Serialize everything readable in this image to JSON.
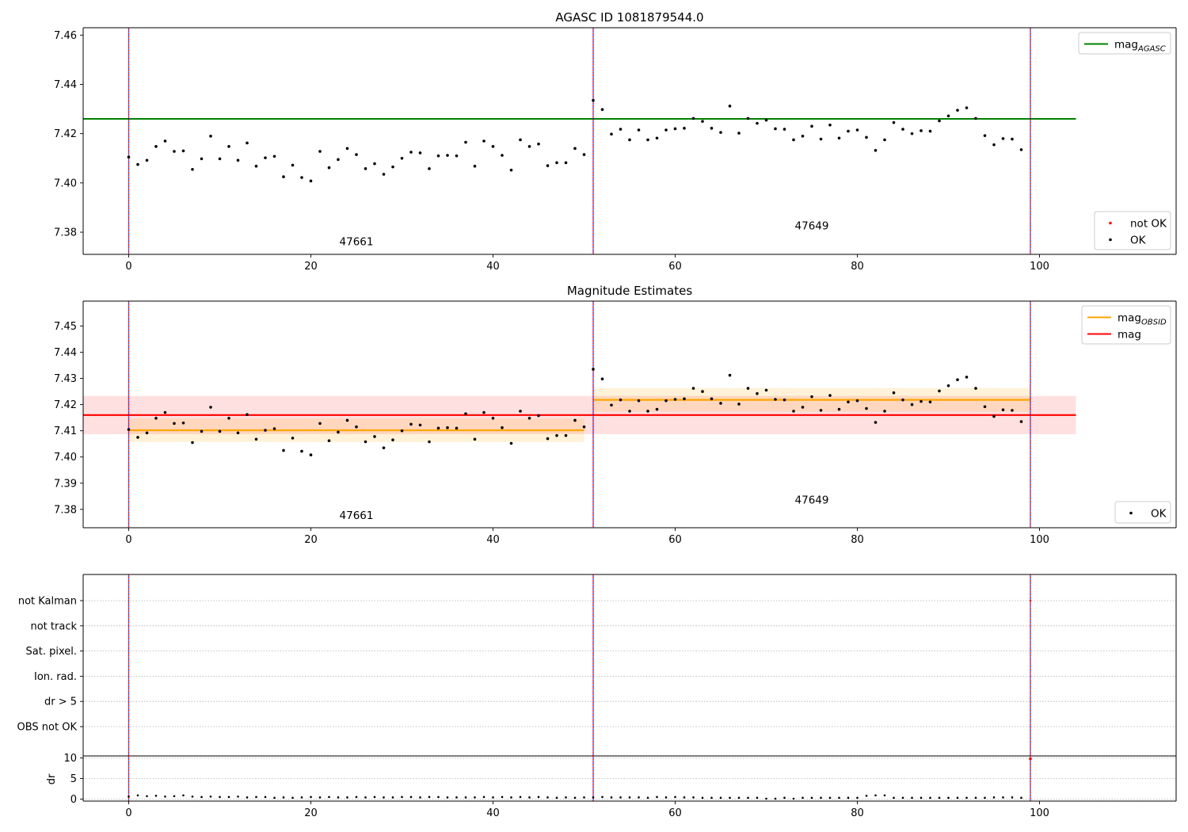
{
  "chart_data": [
    {
      "type": "scatter",
      "title": "AGASC ID 1081879544.0",
      "xlabel": "",
      "ylabel": "",
      "xlim": [
        -5,
        115
      ],
      "ylim": [
        7.371,
        7.463
      ],
      "xticks": [
        0,
        20,
        40,
        60,
        80,
        100
      ],
      "xtick_labels": [
        "0",
        "20",
        "40",
        "60",
        "80",
        "100"
      ],
      "yticks": [
        7.38,
        7.4,
        7.42,
        7.44,
        7.46
      ],
      "ytick_labels": [
        "7.38",
        "7.40",
        "7.42",
        "7.44",
        "7.46"
      ],
      "obsid_boundaries": [
        0,
        51,
        99
      ],
      "obsid_labels": [
        {
          "text": "47661",
          "x": 25,
          "y": 7.3747
        },
        {
          "text": "47649",
          "x": 75,
          "y": 7.3811
        }
      ],
      "lines": [
        {
          "name": "mag_AGASC",
          "y": 7.426,
          "x_range": [
            -5,
            104
          ],
          "color": "#008000"
        }
      ],
      "series": [
        {
          "name": "OK",
          "color": "#000000",
          "x": [
            0,
            1,
            2,
            3,
            4,
            5,
            6,
            7,
            8,
            9,
            10,
            11,
            12,
            13,
            14,
            15,
            16,
            17,
            18,
            19,
            20,
            21,
            22,
            23,
            24,
            25,
            26,
            27,
            28,
            29,
            30,
            31,
            32,
            33,
            34,
            35,
            36,
            37,
            38,
            39,
            40,
            41,
            42,
            43,
            44,
            45,
            46,
            47,
            48,
            49,
            50,
            51,
            52,
            53,
            54,
            55,
            56,
            57,
            58,
            59,
            60,
            61,
            62,
            63,
            64,
            65,
            66,
            67,
            68,
            69,
            70,
            71,
            72,
            73,
            74,
            75,
            76,
            77,
            78,
            79,
            80,
            81,
            82,
            83,
            84,
            85,
            86,
            87,
            88,
            89,
            90,
            91,
            92,
            93,
            94,
            95,
            96,
            97,
            98
          ],
          "y": [
            7.4105,
            7.4075,
            7.4092,
            7.4148,
            7.417,
            7.4128,
            7.413,
            7.4055,
            7.4098,
            7.419,
            7.4098,
            7.4148,
            7.4092,
            7.4162,
            7.4068,
            7.4102,
            7.4108,
            7.4025,
            7.4072,
            7.4022,
            7.4008,
            7.4128,
            7.4062,
            7.4095,
            7.414,
            7.4115,
            7.4058,
            7.4078,
            7.4035,
            7.4065,
            7.41,
            7.4125,
            7.4122,
            7.4058,
            7.411,
            7.4112,
            7.411,
            7.4165,
            7.4068,
            7.417,
            7.4148,
            7.4112,
            7.4052,
            7.4175,
            7.4148,
            7.4158,
            7.407,
            7.4082,
            7.4082,
            7.414,
            7.4115,
            7.4335,
            7.4298,
            7.4198,
            7.4218,
            7.4175,
            7.4215,
            7.4175,
            7.4182,
            7.4215,
            7.422,
            7.4222,
            7.4262,
            7.425,
            7.4222,
            7.4205,
            7.4312,
            7.4202,
            7.4262,
            7.4242,
            7.4255,
            7.422,
            7.4218,
            7.4175,
            7.419,
            7.423,
            7.4178,
            7.4235,
            7.4182,
            7.421,
            7.4215,
            7.4185,
            7.4132,
            7.4175,
            7.4245,
            7.4218,
            7.42,
            7.4212,
            7.421,
            7.4252,
            7.4272,
            7.4295,
            7.4305,
            7.4262,
            7.4192,
            7.4155,
            7.418,
            7.4178,
            7.4135
          ]
        },
        {
          "name": "not OK",
          "color": "#ff0000",
          "x": [],
          "y": []
        }
      ],
      "legends": [
        {
          "placement": "upper right",
          "entries": [
            {
              "label": "mag",
              "sub": "AGASC",
              "kind": "line",
              "color": "#008000"
            }
          ]
        },
        {
          "placement": "lower right",
          "entries": [
            {
              "label": "not OK",
              "kind": "dot",
              "color": "#ff0000"
            },
            {
              "label": "OK",
              "kind": "dot",
              "color": "#000000"
            }
          ]
        }
      ]
    },
    {
      "type": "scatter",
      "title": "Magnitude Estimates",
      "xlabel": "",
      "ylabel": "",
      "xlim": [
        -5,
        115
      ],
      "ylim": [
        7.373,
        7.4595
      ],
      "xticks": [
        0,
        20,
        40,
        60,
        80,
        100
      ],
      "xtick_labels": [
        "0",
        "20",
        "40",
        "60",
        "80",
        "100"
      ],
      "yticks": [
        7.38,
        7.39,
        7.4,
        7.41,
        7.42,
        7.43,
        7.44,
        7.45
      ],
      "ytick_labels": [
        "7.38",
        "7.39",
        "7.40",
        "7.41",
        "7.42",
        "7.43",
        "7.44",
        "7.45"
      ],
      "obsid_boundaries": [
        0,
        51,
        99
      ],
      "obsid_labels": [
        {
          "text": "47661",
          "x": 25,
          "y": 7.3763
        },
        {
          "text": "47649",
          "x": 75,
          "y": 7.3823
        }
      ],
      "bands": [
        {
          "name": "mag",
          "y_low": 7.4087,
          "y_high": 7.4233,
          "x_range": [
            -5,
            104
          ],
          "color": "#ff0000",
          "opacity": 0.12
        },
        {
          "name": "mag_OBSID 47661",
          "y_low": 7.4057,
          "y_high": 7.4147,
          "x_range": [
            0,
            50
          ],
          "color": "#ffa500",
          "opacity": 0.15
        },
        {
          "name": "mag_OBSID 47649",
          "y_low": 7.4173,
          "y_high": 7.4263,
          "x_range": [
            51,
            99
          ],
          "color": "#ffa500",
          "opacity": 0.15
        }
      ],
      "lines": [
        {
          "name": "mag",
          "y": 7.416,
          "x_range": [
            -5,
            104
          ],
          "color": "#ff0000"
        },
        {
          "name": "mag_OBSID 47661",
          "y": 7.4102,
          "x_range": [
            0,
            50
          ],
          "color": "#ffa500"
        },
        {
          "name": "mag_OBSID 47649",
          "y": 7.4218,
          "x_range": [
            51,
            99
          ],
          "color": "#ffa500"
        }
      ],
      "series": [
        {
          "name": "OK",
          "color": "#000000",
          "x": [
            0,
            1,
            2,
            3,
            4,
            5,
            6,
            7,
            8,
            9,
            10,
            11,
            12,
            13,
            14,
            15,
            16,
            17,
            18,
            19,
            20,
            21,
            22,
            23,
            24,
            25,
            26,
            27,
            28,
            29,
            30,
            31,
            32,
            33,
            34,
            35,
            36,
            37,
            38,
            39,
            40,
            41,
            42,
            43,
            44,
            45,
            46,
            47,
            48,
            49,
            50,
            51,
            52,
            53,
            54,
            55,
            56,
            57,
            58,
            59,
            60,
            61,
            62,
            63,
            64,
            65,
            66,
            67,
            68,
            69,
            70,
            71,
            72,
            73,
            74,
            75,
            76,
            77,
            78,
            79,
            80,
            81,
            82,
            83,
            84,
            85,
            86,
            87,
            88,
            89,
            90,
            91,
            92,
            93,
            94,
            95,
            96,
            97,
            98
          ],
          "y": [
            7.4105,
            7.4075,
            7.4092,
            7.4148,
            7.417,
            7.4128,
            7.413,
            7.4055,
            7.4098,
            7.419,
            7.4098,
            7.4148,
            7.4092,
            7.4162,
            7.4068,
            7.4102,
            7.4108,
            7.4025,
            7.4072,
            7.4022,
            7.4008,
            7.4128,
            7.4062,
            7.4095,
            7.414,
            7.4115,
            7.4058,
            7.4078,
            7.4035,
            7.4065,
            7.41,
            7.4125,
            7.4122,
            7.4058,
            7.411,
            7.4112,
            7.411,
            7.4165,
            7.4068,
            7.417,
            7.4148,
            7.4112,
            7.4052,
            7.4175,
            7.4148,
            7.4158,
            7.407,
            7.4082,
            7.4082,
            7.414,
            7.4115,
            7.4335,
            7.4298,
            7.4198,
            7.4218,
            7.4175,
            7.4215,
            7.4175,
            7.4182,
            7.4215,
            7.422,
            7.4222,
            7.4262,
            7.425,
            7.4222,
            7.4205,
            7.4312,
            7.4202,
            7.4262,
            7.4242,
            7.4255,
            7.422,
            7.4218,
            7.4175,
            7.419,
            7.423,
            7.4178,
            7.4235,
            7.4182,
            7.421,
            7.4215,
            7.4185,
            7.4132,
            7.4175,
            7.4245,
            7.4218,
            7.42,
            7.4212,
            7.421,
            7.4252,
            7.4272,
            7.4295,
            7.4305,
            7.4262,
            7.4192,
            7.4155,
            7.418,
            7.4178,
            7.4135
          ]
        }
      ],
      "legends": [
        {
          "placement": "upper right",
          "entries": [
            {
              "label": "mag",
              "sub": "OBSID",
              "kind": "line",
              "color": "#ffa500"
            },
            {
              "label": "mag",
              "kind": "line",
              "color": "#ff0000"
            }
          ]
        },
        {
          "placement": "lower right",
          "entries": [
            {
              "label": "OK",
              "kind": "dot",
              "color": "#000000"
            }
          ]
        }
      ]
    },
    {
      "type": "scatter",
      "title": "",
      "xlabel": "",
      "ylabel": "",
      "xlim": [
        -5,
        115
      ],
      "yticks_categorical": [
        "not Kalman",
        "not track",
        "Sat. pixel.",
        "Ion. rad.",
        "dr > 5",
        "OBS not OK"
      ],
      "grid": "horizontal dotted",
      "obsid_boundaries": [
        0,
        51,
        99
      ],
      "points": [
        {
          "category": "not Kalman",
          "x": 99,
          "color": "#ff0000"
        }
      ]
    },
    {
      "type": "scatter",
      "title": "",
      "xlabel": "",
      "ylabel": "dr",
      "xlim": [
        -5,
        115
      ],
      "ylim": [
        -0.5,
        10.5
      ],
      "xticks": [
        0,
        20,
        40,
        60,
        80,
        100
      ],
      "xtick_labels": [
        "0",
        "20",
        "40",
        "60",
        "80",
        "100"
      ],
      "yticks": [
        0,
        5,
        10
      ],
      "ytick_labels": [
        "0",
        "5",
        "10"
      ],
      "grid": "horizontal dotted",
      "obsid_boundaries": [
        0,
        51,
        99
      ],
      "series": [
        {
          "name": "dr",
          "color": "#000000",
          "x": [
            0,
            1,
            2,
            3,
            4,
            5,
            6,
            7,
            8,
            9,
            10,
            11,
            12,
            13,
            14,
            15,
            16,
            17,
            18,
            19,
            20,
            21,
            22,
            23,
            24,
            25,
            26,
            27,
            28,
            29,
            30,
            31,
            32,
            33,
            34,
            35,
            36,
            37,
            38,
            39,
            40,
            41,
            42,
            43,
            44,
            45,
            46,
            47,
            48,
            49,
            50,
            51,
            52,
            53,
            54,
            55,
            56,
            57,
            58,
            59,
            60,
            61,
            62,
            63,
            64,
            65,
            66,
            67,
            68,
            69,
            70,
            71,
            72,
            73,
            74,
            75,
            76,
            77,
            78,
            79,
            80,
            81,
            82,
            83,
            84,
            85,
            86,
            87,
            88,
            89,
            90,
            91,
            92,
            93,
            94,
            95,
            96,
            97,
            98
          ],
          "y": [
            0.6,
            0.9,
            0.7,
            0.8,
            0.6,
            0.7,
            0.9,
            0.6,
            0.5,
            0.6,
            0.5,
            0.5,
            0.6,
            0.4,
            0.5,
            0.5,
            0.3,
            0.4,
            0.3,
            0.4,
            0.5,
            0.4,
            0.5,
            0.4,
            0.4,
            0.5,
            0.4,
            0.5,
            0.4,
            0.4,
            0.5,
            0.5,
            0.4,
            0.5,
            0.5,
            0.4,
            0.4,
            0.4,
            0.4,
            0.5,
            0.4,
            0.5,
            0.4,
            0.5,
            0.4,
            0.5,
            0.4,
            0.3,
            0.4,
            0.3,
            0.4,
            0.4,
            0.5,
            0.4,
            0.4,
            0.4,
            0.4,
            0.3,
            0.5,
            0.4,
            0.5,
            0.4,
            0.4,
            0.3,
            0.3,
            0.3,
            0.3,
            0.3,
            0.3,
            0.3,
            0.1,
            0.1,
            0.3,
            0.1,
            0.3,
            0.3,
            0.3,
            0.3,
            0.3,
            0.3,
            0.3,
            0.8,
            0.9,
            0.9,
            0.3,
            0.3,
            0.3,
            0.3,
            0.3,
            0.3,
            0.3,
            0.3,
            0.3,
            0.3,
            0.3,
            0.4,
            0.4,
            0.4,
            0.3
          ]
        },
        {
          "name": "not OK",
          "color": "#ff0000",
          "x": [
            99
          ],
          "y": [
            9.8
          ]
        }
      ]
    }
  ]
}
